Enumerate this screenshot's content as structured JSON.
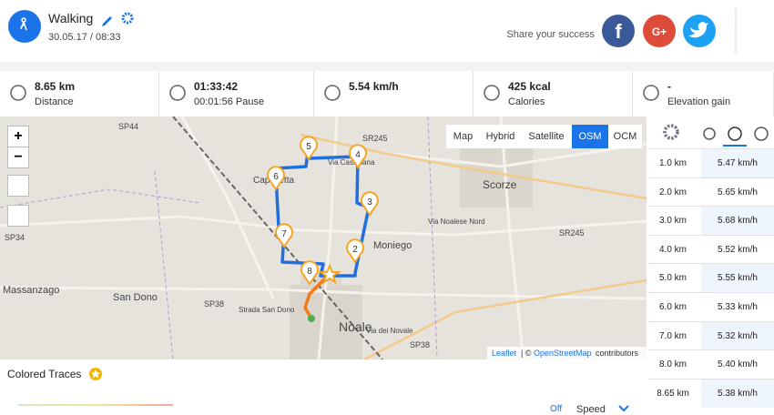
{
  "header": {
    "activity": "Walking",
    "datetime": "30.05.17 / 08:33",
    "share": "Share your success",
    "facebook": "f",
    "googleplus": "G+"
  },
  "stats": [
    {
      "value": "8.65 km",
      "label": "Distance"
    },
    {
      "value": "01:33:42",
      "label": "00:01:56 Pause"
    },
    {
      "value": "5.54 km/h",
      "label": ""
    },
    {
      "value": "425 kcal",
      "label": "Calories"
    },
    {
      "value": "-",
      "label": "Elevation gain"
    }
  ],
  "map": {
    "zoom": [
      "+",
      "−"
    ],
    "layers": [
      "Map",
      "Hybrid",
      "Satellite",
      "OSM",
      "OCM"
    ],
    "active_layer": "OSM",
    "markers": [
      "2",
      "3",
      "4",
      "5",
      "6",
      "7",
      "8"
    ],
    "labels": [
      "SP44",
      "SR245",
      "Via Castellana",
      "Scorze",
      "Capelletta",
      "Moniego",
      "Via Noalese Nord",
      "SR245",
      "SP34",
      "Massanzago",
      "San Dono",
      "SP38",
      "Strada San Dono",
      "Noale",
      "SP38",
      "Via dei Novale"
    ],
    "attribution": [
      "Leaflet",
      "| ©",
      "OpenStreetMap",
      "contributors"
    ]
  },
  "splits": [
    [
      "1.0 km",
      "5.47 km/h"
    ],
    [
      "2.0 km",
      "5.65 km/h"
    ],
    [
      "3.0 km",
      "5.68 km/h"
    ],
    [
      "4.0 km",
      "5.52 km/h"
    ],
    [
      "5.0 km",
      "5.55 km/h"
    ],
    [
      "6.0 km",
      "5.33 km/h"
    ],
    [
      "7.0 km",
      "5.32 km/h"
    ],
    [
      "8.0 km",
      "5.40 km/h"
    ],
    [
      "8.65 km",
      "5.38 km/h"
    ]
  ],
  "colored_traces": "Colored Traces",
  "footer": {
    "toggle": "Off",
    "metric": "Speed"
  }
}
